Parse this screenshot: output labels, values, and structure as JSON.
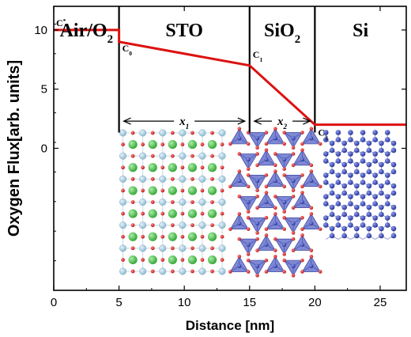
{
  "chart_data": {
    "type": "line",
    "xlabel": "Distance [nm]",
    "ylabel": "Oxygen Flux[arb. units]",
    "xlim": [
      0,
      27
    ],
    "ylim": [
      -12,
      12
    ],
    "x_ticks": [
      0,
      5,
      10,
      15,
      20,
      25
    ],
    "x_tick_labels": [
      "0",
      "5",
      "10",
      "15",
      "20",
      "25"
    ],
    "y_ticks": [
      0,
      5,
      10
    ],
    "y_tick_labels": [
      "0",
      "5",
      "10"
    ],
    "grid": false,
    "series": [
      {
        "color": "#dd1111",
        "x": [
          0,
          5,
          5,
          15,
          20,
          27
        ],
        "y": [
          10,
          10,
          9,
          7,
          2,
          2
        ]
      }
    ],
    "interfaces": [
      5,
      15,
      20
    ],
    "regions": [
      {
        "label": "Air/O",
        "sub": "2",
        "x_center": 2.5
      },
      {
        "label": "STO",
        "sub": "",
        "x_center": 10
      },
      {
        "label": "SiO",
        "sub": "2",
        "x_center": 17.5
      },
      {
        "label": "Si",
        "sub": "",
        "x_center": 23.5
      }
    ],
    "point_labels": [
      {
        "main": "C",
        "sup": "*",
        "sub": "",
        "x": 0.0,
        "y": 10
      },
      {
        "main": "C",
        "sup": "",
        "sub": "0",
        "x": 5,
        "y": 9
      },
      {
        "main": "C",
        "sup": "",
        "sub": "1",
        "x": 15,
        "y": 7
      },
      {
        "main": "C",
        "sup": "",
        "sub": "2",
        "x": 20,
        "y": 2
      }
    ],
    "thickness_arrows": [
      {
        "label": "x",
        "sub": "1",
        "from": 5,
        "to": 15,
        "y": 2.3
      },
      {
        "label": "x",
        "sub": "2",
        "from": 15,
        "to": 20,
        "y": 2.3
      }
    ],
    "structure_panels": [
      {
        "name": "STO",
        "x_from": 5.3,
        "x_to": 12.9
      },
      {
        "name": "SiO2",
        "x_from": 13.8,
        "x_to": 20.0
      },
      {
        "name": "Si",
        "x_from": 20.6,
        "x_to": 26.0
      }
    ],
    "atom_colors": {
      "oxygen": "#d42020",
      "strontium": "#4ec24e",
      "titanium": "#a8cfe2",
      "silicon": "#2f3fb0",
      "tetrahedron": "#5a66c8"
    }
  }
}
